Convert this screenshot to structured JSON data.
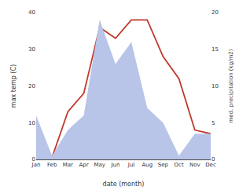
{
  "chart_data": {
    "type": "line",
    "categories": [
      "Jan",
      "Feb",
      "Mar",
      "Apr",
      "May",
      "Jun",
      "Jul",
      "Aug",
      "Sep",
      "Oct",
      "Nov",
      "Dec"
    ],
    "xlabel": "date (month)",
    "ylabel": "max temp (C)",
    "y2label": "med. precipitation (kg/m2)",
    "series": [
      {
        "type": "area",
        "axis": "y2",
        "color": "#b8c4e8",
        "values": [
          6,
          0.5,
          4,
          6,
          19,
          13,
          16,
          7,
          5,
          0.5,
          3.5,
          3.5
        ]
      },
      {
        "type": "line",
        "color": "#c0392b",
        "values": [
          0.5,
          0.5,
          13,
          18,
          36,
          33,
          38,
          38,
          28,
          22,
          8,
          7
        ]
      }
    ],
    "ylim": [
      0,
      40
    ],
    "yticks": [
      0,
      10,
      20,
      30,
      40
    ],
    "y2lim": [
      0,
      20
    ],
    "y2ticks": [
      0,
      5,
      10,
      15,
      20
    ],
    "grid": false
  }
}
